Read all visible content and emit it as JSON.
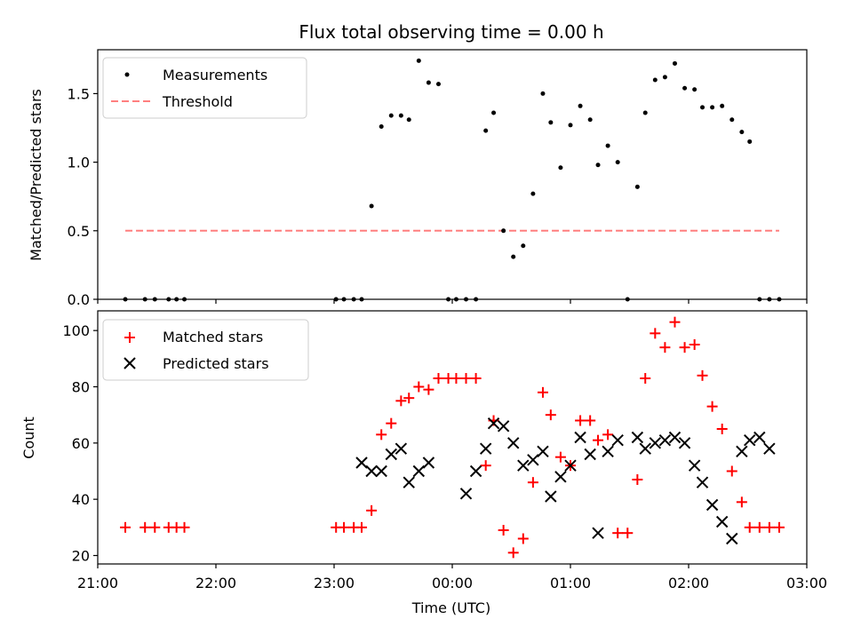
{
  "chart_data": [
    {
      "type": "scatter",
      "title": "Flux total observing time = 0.00 h",
      "xlabel": "",
      "ylabel": "Matched/Predicted stars",
      "ylim": [
        0,
        1.82
      ],
      "yticks": [
        0.0,
        0.5,
        1.0,
        1.5
      ],
      "ytick_labels": [
        "0.0",
        "0.5",
        "1.0",
        "1.5"
      ],
      "grid": false,
      "legend_position": "top-left",
      "series": [
        {
          "name": "Measurements",
          "kind": "scatter",
          "marker": "dot",
          "color": "#000000",
          "x": [
            "21:14",
            "21:24",
            "21:29",
            "21:36",
            "21:40",
            "21:44",
            "23:01",
            "23:05",
            "23:10",
            "23:14",
            "23:19",
            "23:24",
            "23:29",
            "23:34",
            "23:38",
            "23:43",
            "23:48",
            "23:53",
            "23:58",
            "00:02",
            "00:07",
            "00:12",
            "00:17",
            "00:21",
            "00:26",
            "00:31",
            "00:36",
            "00:41",
            "00:46",
            "00:50",
            "00:55",
            "00:60",
            "01:05",
            "01:10",
            "01:14",
            "01:19",
            "01:24",
            "01:29",
            "01:34",
            "01:38",
            "01:43",
            "01:48",
            "01:53",
            "01:58",
            "02:03",
            "02:07",
            "02:12",
            "02:17",
            "02:22",
            "02:27",
            "02:31",
            "02:36",
            "02:41",
            "02:46"
          ],
          "y": [
            0.0,
            0.0,
            0.0,
            0.0,
            0.0,
            0.0,
            0.0,
            0.0,
            0.0,
            0.0,
            0.68,
            1.26,
            1.34,
            1.34,
            1.31,
            1.74,
            1.58,
            1.57,
            0.0,
            0.0,
            0.0,
            0.0,
            1.23,
            1.36,
            0.5,
            0.31,
            0.39,
            0.77,
            1.5,
            1.29,
            0.96,
            1.27,
            1.41,
            1.31,
            0.98,
            1.12,
            1.0,
            0.0,
            0.82,
            1.36,
            1.6,
            1.62,
            1.72,
            1.54,
            1.53,
            1.4,
            1.4,
            1.41,
            1.31,
            1.22,
            1.15,
            0.0,
            0.0,
            0.0
          ]
        },
        {
          "name": "Threshold",
          "kind": "line",
          "dash": "dashed",
          "color": "#ff7f7f",
          "x": [
            "21:14",
            "02:46"
          ],
          "y": [
            0.5,
            0.5
          ]
        }
      ]
    },
    {
      "type": "scatter",
      "title": "",
      "xlabel": "Time (UTC)",
      "ylabel": "Count",
      "ylim": [
        17,
        107
      ],
      "yticks": [
        20,
        40,
        60,
        80,
        100
      ],
      "ytick_labels": [
        "20",
        "40",
        "60",
        "80",
        "100"
      ],
      "xlim": [
        "21:00",
        "03:00"
      ],
      "xticks": [
        "21:00",
        "22:00",
        "23:00",
        "00:00",
        "01:00",
        "02:00",
        "03:00"
      ],
      "grid": false,
      "legend_position": "top-left",
      "series": [
        {
          "name": "Matched stars",
          "marker": "plus",
          "color": "#ff0000",
          "x": [
            "21:14",
            "21:24",
            "21:29",
            "21:36",
            "21:40",
            "21:44",
            "23:01",
            "23:05",
            "23:10",
            "23:14",
            "23:19",
            "23:24",
            "23:29",
            "23:34",
            "23:38",
            "23:43",
            "23:48",
            "23:53",
            "23:58",
            "00:02",
            "00:07",
            "00:12",
            "00:17",
            "00:21",
            "00:26",
            "00:31",
            "00:36",
            "00:41",
            "00:46",
            "00:50",
            "00:55",
            "00:60",
            "01:05",
            "01:10",
            "01:14",
            "01:19",
            "01:24",
            "01:29",
            "01:34",
            "01:38",
            "01:43",
            "01:48",
            "01:53",
            "01:58",
            "02:03",
            "02:07",
            "02:12",
            "02:17",
            "02:22",
            "02:27",
            "02:31",
            "02:36",
            "02:41",
            "02:46"
          ],
          "y": [
            30,
            30,
            30,
            30,
            30,
            30,
            30,
            30,
            30,
            30,
            36,
            63,
            67,
            75,
            76,
            80,
            79,
            83,
            83,
            83,
            83,
            83,
            52,
            68,
            29,
            21,
            26,
            46,
            78,
            70,
            55,
            52,
            68,
            68,
            61,
            63,
            28,
            28,
            47,
            83,
            99,
            94,
            103,
            94,
            95,
            84,
            73,
            65,
            50,
            39,
            30,
            30,
            30,
            30
          ]
        },
        {
          "name": "Predicted stars",
          "marker": "cross",
          "color": "#000000",
          "x": [
            "23:14",
            "23:19",
            "23:24",
            "23:29",
            "23:34",
            "23:38",
            "23:43",
            "23:48",
            "00:07",
            "00:12",
            "00:17",
            "00:21",
            "00:26",
            "00:31",
            "00:36",
            "00:41",
            "00:46",
            "00:50",
            "00:55",
            "00:60",
            "01:05",
            "01:10",
            "01:14",
            "01:19",
            "01:24",
            "01:34",
            "01:38",
            "01:43",
            "01:48",
            "01:53",
            "01:58",
            "02:03",
            "02:07",
            "02:12",
            "02:17",
            "02:22",
            "02:27",
            "02:31",
            "02:36",
            "02:41"
          ],
          "y": [
            53,
            50,
            50,
            56,
            58,
            46,
            50,
            53,
            42,
            50,
            58,
            67,
            66,
            60,
            52,
            54,
            57,
            41,
            48,
            52,
            62,
            56,
            28,
            57,
            61,
            62,
            58,
            60,
            61,
            62,
            60,
            52,
            46,
            38,
            32,
            26,
            57,
            61,
            62,
            58
          ]
        }
      ]
    }
  ]
}
